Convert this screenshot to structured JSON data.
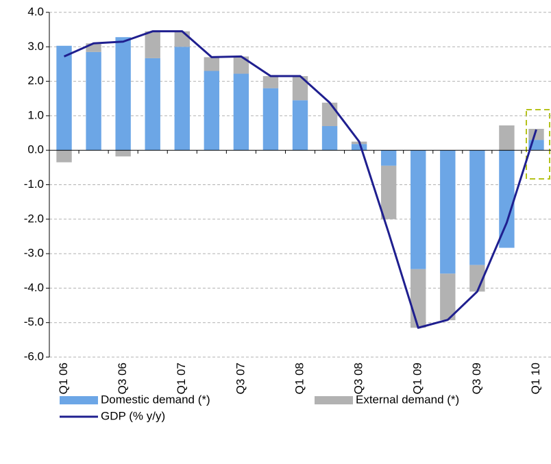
{
  "chart_data": {
    "type": "bar",
    "categories": [
      "Q1 06",
      null,
      "Q3 06",
      null,
      "Q1 07",
      null,
      "Q3 07",
      null,
      "Q1 08",
      null,
      "Q3 08",
      null,
      "Q1 09",
      null,
      "Q3 09",
      null,
      "Q1 10"
    ],
    "series": [
      {
        "name": "Domestic demand (*)",
        "type": "bar",
        "color": "#6ca6e6",
        "values": [
          3.03,
          2.85,
          3.28,
          2.67,
          3.0,
          2.3,
          2.22,
          1.8,
          1.45,
          0.7,
          0.18,
          -0.45,
          -3.45,
          -3.58,
          -3.33,
          -2.83,
          0.3
        ]
      },
      {
        "name": "External demand (*)",
        "type": "bar",
        "color": "#b2b2b2",
        "values": [
          -0.35,
          0.25,
          -0.18,
          0.78,
          0.45,
          0.4,
          0.5,
          0.35,
          0.7,
          0.68,
          0.07,
          -1.55,
          -1.7,
          -1.35,
          -0.77,
          0.72,
          0.32
        ]
      },
      {
        "name": "GDP (% y/y)",
        "type": "line",
        "color": "#1f1f8f",
        "values": [
          2.72,
          3.1,
          3.15,
          3.45,
          3.45,
          2.7,
          2.72,
          2.15,
          2.15,
          1.38,
          0.25,
          -2.4,
          -5.15,
          -4.92,
          -4.1,
          -2.1,
          0.6
        ]
      }
    ],
    "ylim": [
      -6,
      4
    ],
    "yticks": [
      {
        "value": -6,
        "label": "-6.0"
      },
      {
        "value": -5,
        "label": "-5.0"
      },
      {
        "value": -4,
        "label": "-4.0"
      },
      {
        "value": -3,
        "label": "-3.0"
      },
      {
        "value": -2,
        "label": "-2.0"
      },
      {
        "value": -1,
        "label": "-1.0"
      },
      {
        "value": 0,
        "label": "0.0"
      },
      {
        "value": 1,
        "label": "1.0"
      },
      {
        "value": 2,
        "label": "2.0"
      },
      {
        "value": 3,
        "label": "3.0"
      },
      {
        "value": 4,
        "label": "4.0"
      }
    ],
    "grid": true,
    "legend": "bottom"
  }
}
